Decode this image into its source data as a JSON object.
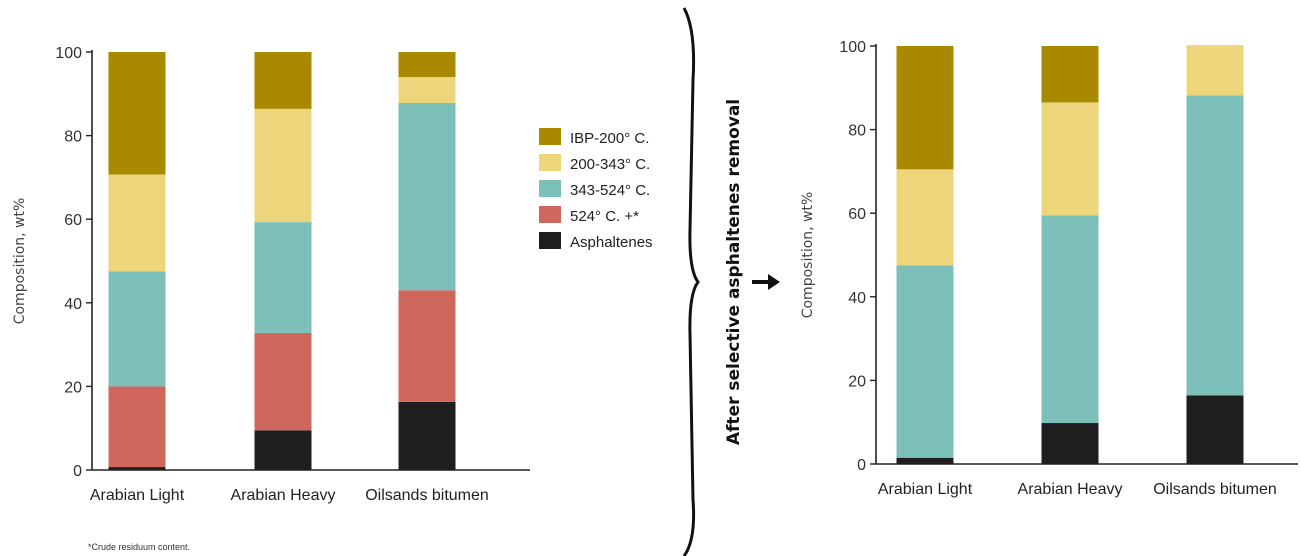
{
  "colors": {
    "IBP-200° C.": "#A88900",
    "200-343° C.": "#ECD57A",
    "343-524° C.": "#7CC0B9",
    "524° C. +*": "#D0675D",
    "Asphaltenes": "#1E1E1E"
  },
  "legend": [
    "IBP-200° C.",
    "200-343° C.",
    "343-524° C.",
    "524° C. +*",
    "Asphaltenes"
  ],
  "footnote": "*Crude residuum content.",
  "middle_label": "After selective asphaltenes removal",
  "chart_data": [
    {
      "type": "bar",
      "stacked": true,
      "title": "",
      "xlabel": "",
      "ylabel": "Composition, wt%",
      "ylim": [
        0,
        100
      ],
      "yticks": [
        0,
        20,
        40,
        60,
        80,
        100
      ],
      "categories": [
        "Arabian Light",
        "Arabian Heavy",
        "Oilsands bitumen"
      ],
      "series": [
        {
          "name": "Asphaltenes",
          "values": [
            0.7,
            9.5,
            16.3
          ]
        },
        {
          "name": "524° C. +*",
          "values": [
            19.3,
            23.3,
            26.7
          ]
        },
        {
          "name": "343-524° C.",
          "values": [
            27.5,
            26.5,
            44.8
          ]
        },
        {
          "name": "200-343° C.",
          "values": [
            23.2,
            27.1,
            6.2
          ]
        },
        {
          "name": "IBP-200° C.",
          "values": [
            29.3,
            13.6,
            6.0
          ]
        }
      ]
    },
    {
      "type": "bar",
      "stacked": true,
      "title": "",
      "xlabel": "",
      "ylabel": "Composition, wt%",
      "ylim": [
        0,
        100
      ],
      "yticks": [
        0,
        20,
        40,
        60,
        80,
        100
      ],
      "categories": [
        "Arabian Light",
        "Arabian Heavy",
        "Oilsands bitumen"
      ],
      "series": [
        {
          "name": "Asphaltenes",
          "values": [
            1.5,
            9.8,
            16.4
          ]
        },
        {
          "name": "343-524° C.",
          "values": [
            46.0,
            49.7,
            71.8
          ]
        },
        {
          "name": "200-343° C.",
          "values": [
            23.0,
            27.0,
            12.0
          ]
        },
        {
          "name": "IBP-200° C.",
          "values": [
            29.5,
            13.5,
            0
          ]
        }
      ]
    }
  ]
}
